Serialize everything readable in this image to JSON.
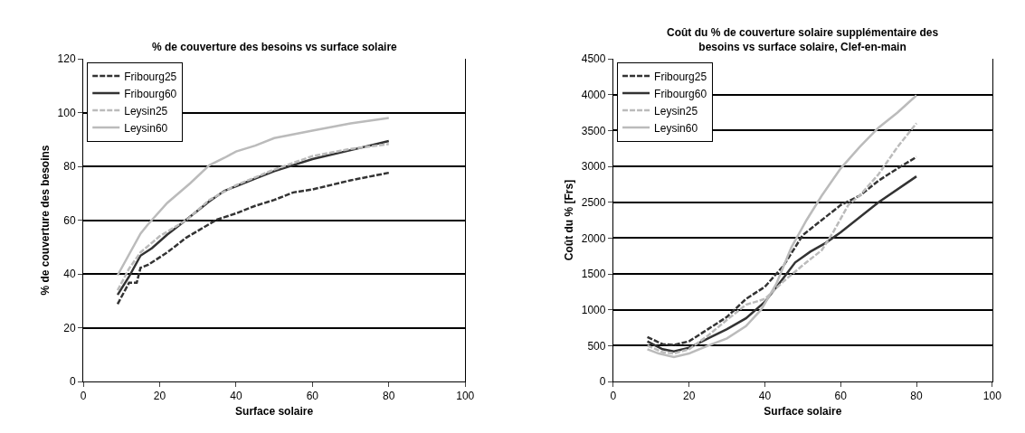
{
  "chart_data": [
    {
      "type": "line",
      "title": "% de couverture des besoins vs surface solaire",
      "xlabel": "Surface solaire",
      "ylabel": "% de couverture des besoins",
      "xlim": [
        0,
        100
      ],
      "xticks": [
        0,
        20,
        40,
        60,
        80,
        100
      ],
      "ylim": [
        0,
        120
      ],
      "yticks": [
        0,
        20,
        40,
        60,
        80,
        100,
        120
      ],
      "grid": "y",
      "legend": "top left",
      "series": [
        {
          "name": "Fribourg25",
          "color": "#333333",
          "line_style": "dashed",
          "x": [
            9,
            12,
            14,
            15,
            17,
            22,
            27,
            35,
            40,
            45,
            50,
            55,
            60,
            70,
            80
          ],
          "values": [
            28.8,
            36.7,
            36.7,
            42.3,
            43.4,
            48,
            53.5,
            60.2,
            62.5,
            65.3,
            67.5,
            70.3,
            71.4,
            74.8,
            77.6
          ]
        },
        {
          "name": "Fribourg60",
          "color": "#333333",
          "line_style": "solid",
          "x": [
            9,
            12,
            15,
            18,
            22,
            27,
            33,
            37,
            40,
            45,
            50,
            60,
            70,
            80
          ],
          "values": [
            32.2,
            39,
            46.8,
            49.6,
            54.6,
            60.2,
            67,
            70.9,
            72.6,
            75.4,
            78.2,
            82.7,
            86,
            89.4
          ]
        },
        {
          "name": "Leysin25",
          "color": "#bbbbbb",
          "line_style": "dashed",
          "x": [
            9,
            12,
            15,
            20,
            27,
            33,
            40,
            50,
            60,
            70,
            80
          ],
          "values": [
            33.9,
            42,
            48,
            54,
            60,
            67.5,
            73,
            78.8,
            83.8,
            86.5,
            88.3
          ]
        },
        {
          "name": "Leysin60",
          "color": "#bbbbbb",
          "line_style": "solid",
          "x": [
            9,
            15,
            17,
            22,
            28,
            33,
            37,
            40,
            45,
            50,
            60,
            70,
            80
          ],
          "values": [
            39.5,
            55,
            58.5,
            66.4,
            73.7,
            80.4,
            83.2,
            85.5,
            87.7,
            90.5,
            93.3,
            96,
            98
          ]
        }
      ]
    },
    {
      "type": "line",
      "title": "Coût du % de couverture solaire supplémentaire des besoins vs surface solaire, Clef-en-main",
      "xlabel": "Surface solaire",
      "ylabel": "Coût du % [Frs]",
      "xlim": [
        0,
        100
      ],
      "xticks": [
        0,
        20,
        40,
        60,
        80,
        100
      ],
      "ylim": [
        0,
        4500
      ],
      "yticks": [
        0,
        500,
        1000,
        1500,
        2000,
        2500,
        3000,
        3500,
        4000,
        4500
      ],
      "grid": "y",
      "legend": "top left",
      "series": [
        {
          "name": "Fribourg25",
          "color": "#333333",
          "line_style": "dashed",
          "x": [
            9,
            13,
            16,
            20,
            25,
            30,
            35,
            40,
            45,
            50,
            55,
            60,
            65,
            70,
            75,
            80
          ],
          "values": [
            620,
            520,
            510,
            560,
            730,
            900,
            1150,
            1320,
            1620,
            2040,
            2250,
            2460,
            2590,
            2800,
            2970,
            3130
          ]
        },
        {
          "name": "Fribourg60",
          "color": "#333333",
          "line_style": "solid",
          "x": [
            9,
            13,
            16,
            20,
            25,
            30,
            35,
            40,
            45,
            48,
            52,
            56,
            60,
            70,
            80
          ],
          "values": [
            560,
            450,
            420,
            470,
            600,
            730,
            880,
            1110,
            1450,
            1660,
            1810,
            1930,
            2080,
            2500,
            2860
          ]
        },
        {
          "name": "Leysin25",
          "color": "#bbbbbb",
          "line_style": "dashed",
          "x": [
            9,
            13,
            16,
            20,
            25,
            30,
            35,
            40,
            45,
            50,
            55,
            58,
            62,
            65,
            70,
            75,
            80
          ],
          "values": [
            500,
            410,
            390,
            450,
            640,
            860,
            1070,
            1150,
            1400,
            1620,
            1830,
            2080,
            2460,
            2590,
            2890,
            3270,
            3600
          ]
        },
        {
          "name": "Leysin60",
          "color": "#bbbbbb",
          "line_style": "solid",
          "x": [
            9,
            12,
            16,
            20,
            25,
            30,
            35,
            39,
            43,
            47,
            51,
            55,
            60,
            65,
            70,
            75,
            80
          ],
          "values": [
            450,
            390,
            340,
            390,
            500,
            600,
            770,
            1000,
            1360,
            1870,
            2250,
            2590,
            2970,
            3270,
            3540,
            3750,
            3990
          ]
        }
      ]
    }
  ]
}
